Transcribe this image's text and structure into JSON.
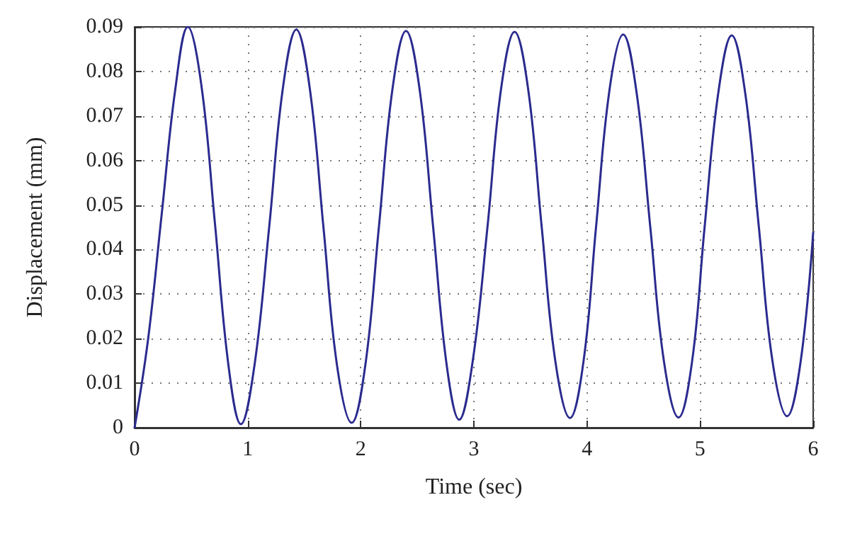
{
  "chart_data": {
    "type": "line",
    "xlabel": "Time (sec)",
    "ylabel": "Displacement (mm)",
    "x": [
      0,
      0.12,
      0.24,
      0.36,
      0.47,
      0.59,
      0.71,
      0.83,
      0.94,
      1.06,
      1.19,
      1.31,
      1.43,
      1.55,
      1.67,
      1.79,
      1.92,
      2.04,
      2.16,
      2.28,
      2.4,
      2.52,
      2.64,
      2.76,
      2.87,
      2.99,
      3.12,
      3.24,
      3.36,
      3.48,
      3.6,
      3.72,
      3.85,
      3.97,
      4.08,
      4.2,
      4.32,
      4.44,
      4.56,
      4.68,
      4.81,
      4.93,
      5.04,
      5.16,
      5.28,
      5.4,
      5.52,
      5.64,
      5.77,
      5.89,
      6
    ],
    "series": [
      {
        "color": "#2b2b8f",
        "values": [
          0,
          0.02,
          0.048,
          0.076,
          0.09,
          0.077,
          0.046,
          0.014,
          0.0008,
          0.014,
          0.045,
          0.076,
          0.0894,
          0.076,
          0.045,
          0.014,
          0.0011,
          0.014,
          0.045,
          0.076,
          0.0891,
          0.076,
          0.045,
          0.014,
          0.0018,
          0.015,
          0.045,
          0.076,
          0.0889,
          0.076,
          0.045,
          0.015,
          0.0022,
          0.015,
          0.045,
          0.076,
          0.0883,
          0.075,
          0.045,
          0.015,
          0.0023,
          0.015,
          0.045,
          0.075,
          0.0881,
          0.075,
          0.045,
          0.015,
          0.0026,
          0.015,
          0.0438
        ]
      }
    ],
    "xlim": [
      0,
      6
    ],
    "xticks": [
      0,
      1,
      2,
      3,
      4,
      5,
      6
    ],
    "ylim": [
      0,
      0.09
    ],
    "yticks": [
      0,
      0.01,
      0.02,
      0.03,
      0.04,
      0.05,
      0.06,
      0.07,
      0.08,
      0.09
    ],
    "grid": true,
    "marker": "none",
    "line_style": "solid"
  }
}
